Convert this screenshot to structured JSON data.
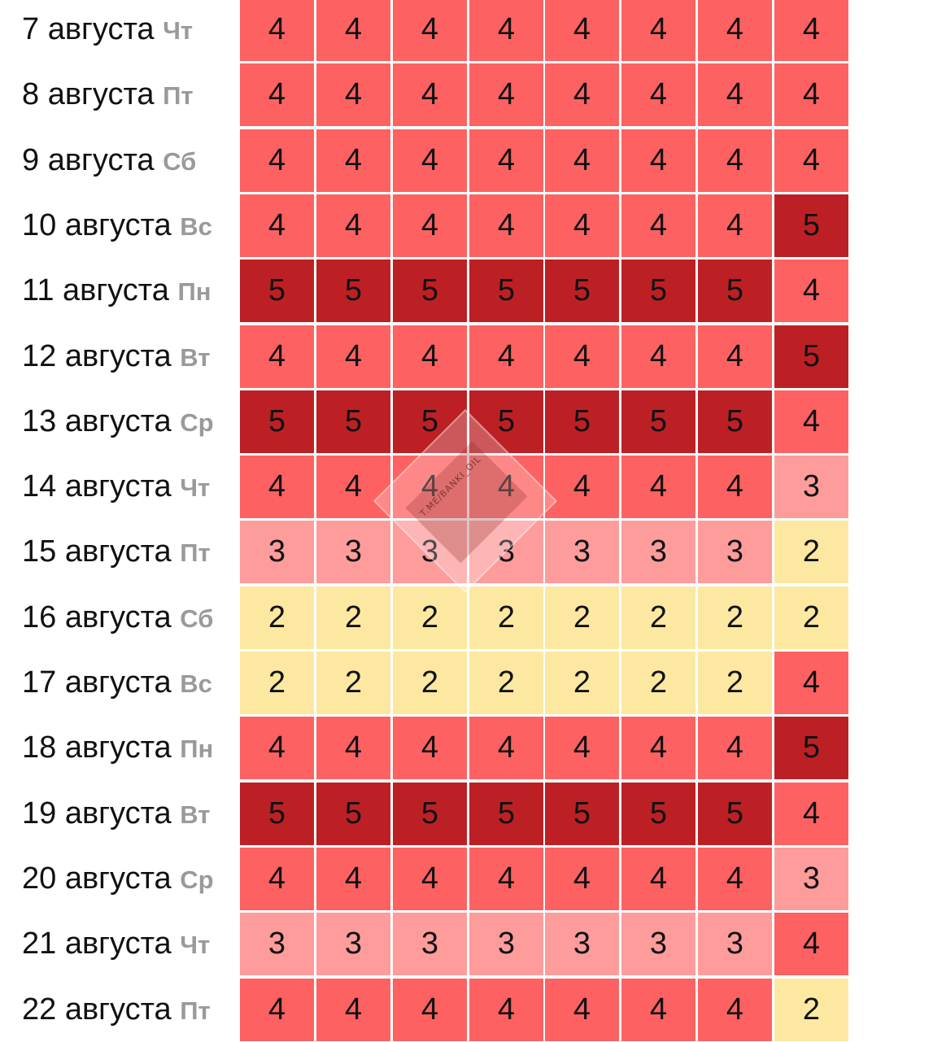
{
  "chart_data": {
    "type": "heatmap",
    "title": "",
    "rows": [
      {
        "date": "7 августа",
        "day": "Чт",
        "values": [
          4,
          4,
          4,
          4,
          4,
          4,
          4,
          4
        ]
      },
      {
        "date": "8 августа",
        "day": "Пт",
        "values": [
          4,
          4,
          4,
          4,
          4,
          4,
          4,
          4
        ]
      },
      {
        "date": "9 августа",
        "day": "Сб",
        "values": [
          4,
          4,
          4,
          4,
          4,
          4,
          4,
          4
        ]
      },
      {
        "date": "10 августа",
        "day": "Вс",
        "values": [
          4,
          4,
          4,
          4,
          4,
          4,
          4,
          5
        ]
      },
      {
        "date": "11 августа",
        "day": "Пн",
        "values": [
          5,
          5,
          5,
          5,
          5,
          5,
          5,
          4
        ]
      },
      {
        "date": "12 августа",
        "day": "Вт",
        "values": [
          4,
          4,
          4,
          4,
          4,
          4,
          4,
          5
        ]
      },
      {
        "date": "13 августа",
        "day": "Ср",
        "values": [
          5,
          5,
          5,
          5,
          5,
          5,
          5,
          4
        ]
      },
      {
        "date": "14 августа",
        "day": "Чт",
        "values": [
          4,
          4,
          4,
          4,
          4,
          4,
          4,
          3
        ]
      },
      {
        "date": "15 августа",
        "day": "Пт",
        "values": [
          3,
          3,
          3,
          3,
          3,
          3,
          3,
          2
        ]
      },
      {
        "date": "16 августа",
        "day": "Сб",
        "values": [
          2,
          2,
          2,
          2,
          2,
          2,
          2,
          2
        ]
      },
      {
        "date": "17 августа",
        "day": "Вс",
        "values": [
          2,
          2,
          2,
          2,
          2,
          2,
          2,
          4
        ]
      },
      {
        "date": "18 августа",
        "day": "Пн",
        "values": [
          4,
          4,
          4,
          4,
          4,
          4,
          4,
          5
        ]
      },
      {
        "date": "19 августа",
        "day": "Вт",
        "values": [
          5,
          5,
          5,
          5,
          5,
          5,
          5,
          4
        ]
      },
      {
        "date": "20 августа",
        "day": "Ср",
        "values": [
          4,
          4,
          4,
          4,
          4,
          4,
          4,
          3
        ]
      },
      {
        "date": "21 августа",
        "day": "Чт",
        "values": [
          3,
          3,
          3,
          3,
          3,
          3,
          3,
          4
        ]
      },
      {
        "date": "22 августа",
        "day": "Пт",
        "values": [
          4,
          4,
          4,
          4,
          4,
          4,
          4,
          2
        ]
      }
    ],
    "color_scale": {
      "2": "#fce8a0",
      "3": "#fe9c9c",
      "4": "#fe6161",
      "5": "#bd2024"
    },
    "grid": true
  },
  "watermark": {
    "text": "T.ME/BANKI_OIL",
    "icon": "oil-pump-icon"
  }
}
